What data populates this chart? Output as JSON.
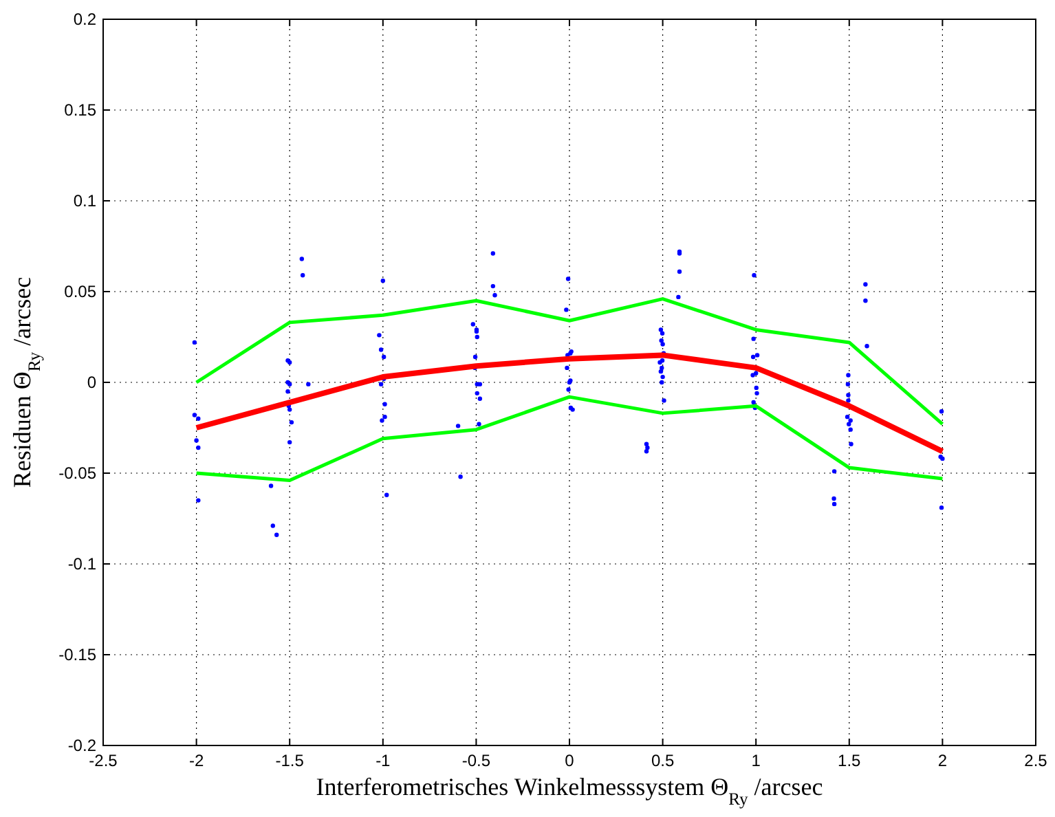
{
  "chart_data": {
    "type": "line",
    "xlabel": "Interferometrisches Winkelmesssystem Θ$_{Ry}$ /arcsec",
    "ylabel": "Residuen Θ$_{Ry}$ /arcsec",
    "xlim": [
      -2.5,
      2.5
    ],
    "xticks": [
      -2.5,
      -2,
      -1.5,
      -1,
      -0.5,
      0,
      0.5,
      1,
      1.5,
      2,
      2.5
    ],
    "ylim": [
      -0.2,
      0.2
    ],
    "yticks": [
      -0.2,
      -0.15,
      -0.1,
      -0.05,
      0,
      0.05,
      0.1,
      0.15,
      0.2
    ],
    "grid": true,
    "series": [
      {
        "type": "scatter",
        "color": "#0000ff",
        "marker": "circle",
        "x": [
          -2.01,
          -2.01,
          -1.99,
          -2.0,
          -1.99,
          -1.99,
          -1.435,
          -1.43,
          -1.51,
          -1.5,
          -1.51,
          -1.5,
          -1.51,
          -1.4,
          -1.505,
          -1.5,
          -1.49,
          -1.5,
          -1.6,
          -1.59,
          -1.57,
          -1.0,
          -1.02,
          -1.01,
          -0.995,
          -0.995,
          -1.01,
          -0.99,
          -0.99,
          -1.005,
          -0.98,
          -0.597,
          -0.584,
          -0.41,
          -0.41,
          -0.4,
          -0.517,
          -0.498,
          -0.498,
          -0.495,
          -0.505,
          -0.507,
          -0.495,
          -0.48,
          -0.495,
          -0.48,
          -0.485,
          -0.007,
          -0.017,
          0.01,
          -0.01,
          0.005,
          -0.013,
          0.005,
          0.0,
          -0.005,
          0.007,
          0.017,
          0.413,
          0.418,
          0.413,
          0.59,
          0.59,
          0.59,
          0.584,
          0.49,
          0.498,
          0.493,
          0.5,
          0.505,
          0.498,
          0.485,
          0.495,
          0.49,
          0.5,
          0.495,
          0.507,
          0.99,
          0.987,
          0.985,
          1.007,
          0.983,
          1.0,
          1.002,
          1.005,
          0.987,
          0.995,
          1.42,
          1.418,
          1.42,
          1.587,
          1.587,
          1.595,
          1.495,
          1.493,
          1.495,
          1.495,
          1.49,
          1.507,
          1.498,
          1.507,
          1.51,
          1.995,
          1.99,
          2.0,
          1.995
        ],
        "values": [
          0.022,
          -0.018,
          -0.02,
          -0.032,
          -0.036,
          -0.065,
          0.068,
          0.059,
          0.012,
          0.011,
          0.0,
          -0.001,
          -0.005,
          -0.001,
          -0.013,
          -0.015,
          -0.022,
          -0.033,
          -0.057,
          -0.079,
          -0.084,
          0.056,
          0.026,
          0.018,
          0.014,
          0.002,
          -0.001,
          -0.012,
          -0.019,
          -0.021,
          -0.062,
          -0.024,
          -0.052,
          0.071,
          0.053,
          0.048,
          0.032,
          0.029,
          0.028,
          0.025,
          0.014,
          0.008,
          -0.001,
          -0.001,
          -0.006,
          -0.009,
          -0.023,
          0.057,
          0.04,
          0.017,
          0.015,
          0.016,
          0.008,
          0.001,
          0.0,
          -0.004,
          -0.014,
          -0.015,
          -0.034,
          -0.036,
          -0.038,
          0.072,
          0.071,
          0.061,
          0.047,
          0.029,
          0.027,
          0.023,
          0.021,
          0.016,
          0.012,
          0.011,
          0.008,
          0.006,
          0.003,
          0.0,
          -0.01,
          0.059,
          0.024,
          0.014,
          0.015,
          0.004,
          0.005,
          -0.003,
          -0.006,
          -0.011,
          -0.014,
          -0.049,
          -0.064,
          -0.067,
          0.054,
          0.045,
          0.02,
          0.004,
          -0.001,
          -0.007,
          -0.01,
          -0.019,
          -0.021,
          -0.023,
          -0.026,
          -0.034,
          -0.016,
          -0.041,
          -0.042,
          -0.069
        ]
      },
      {
        "color": "#00ff00",
        "x": [
          -2,
          -1.5,
          -1,
          -0.5,
          0,
          0.5,
          1,
          1.5,
          2
        ],
        "values": [
          0.0,
          0.033,
          0.037,
          0.045,
          0.034,
          0.046,
          0.029,
          0.022,
          -0.023
        ]
      },
      {
        "color": "#00ff00",
        "x": [
          -2,
          -1.5,
          -1,
          -0.5,
          0,
          0.5,
          1,
          1.5,
          2
        ],
        "values": [
          -0.05,
          -0.054,
          -0.031,
          -0.026,
          -0.008,
          -0.017,
          -0.013,
          -0.047,
          -0.053
        ]
      },
      {
        "color": "#ff0000",
        "x": [
          -2,
          -1.5,
          -1,
          -0.5,
          0,
          0.5,
          1,
          1.5,
          2
        ],
        "values": [
          -0.025,
          -0.011,
          0.003,
          0.009,
          0.013,
          0.015,
          0.008,
          -0.013,
          -0.038
        ]
      }
    ]
  }
}
